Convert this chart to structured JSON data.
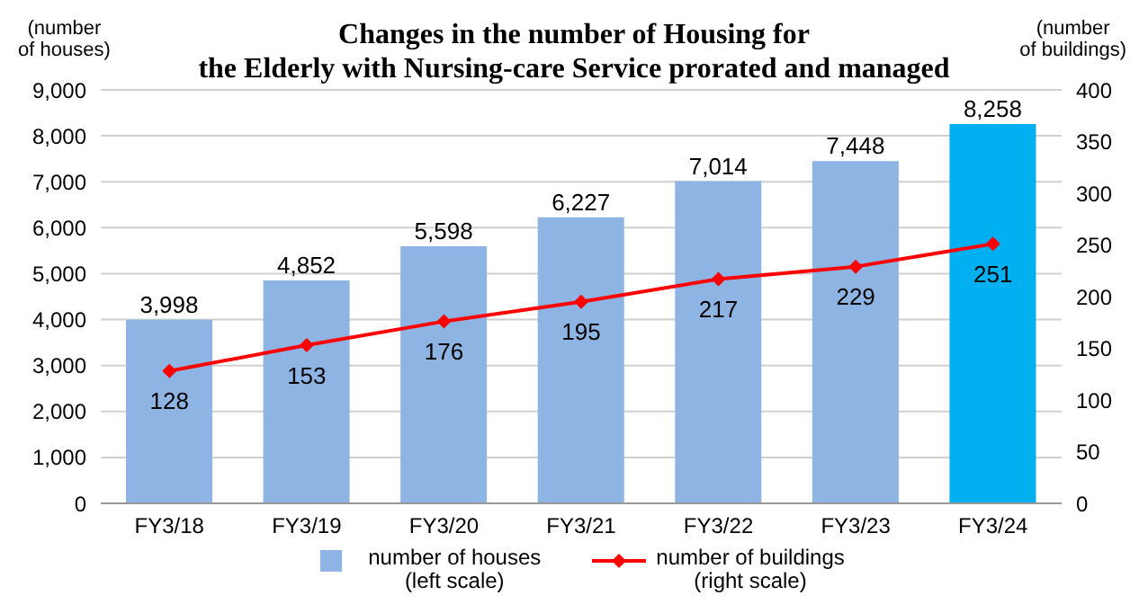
{
  "chart_data": {
    "type": "bar",
    "title": "Changes in the number of Housing for\nthe Elderly with Nursing-care Service prorated and managed",
    "ylabel": "(number\nof houses)",
    "y2label": "(number\nof buildings)",
    "categories": [
      "FY3/18",
      "FY3/19",
      "FY3/20",
      "FY3/21",
      "FY3/22",
      "FY3/23",
      "FY3/24"
    ],
    "series": [
      {
        "name": "number of houses\n(left scale)",
        "color": "#8db4e2",
        "value_labels": [
          "3,998",
          "4,852",
          "5,598",
          "6,227",
          "7,014",
          "7,448",
          "8,258"
        ],
        "colors": [
          "#8db4e2",
          "#8db4e2",
          "#8db4e2",
          "#8db4e2",
          "#8db4e2",
          "#8db4e2",
          "#00b0f0"
        ],
        "values": [
          3998,
          4852,
          5598,
          6227,
          7014,
          7448,
          8258
        ]
      },
      {
        "name": "number of buildings\n(right scale)",
        "type": "line",
        "axis": "y2",
        "color": "#ff0000",
        "marker": "diamond",
        "values": [
          128,
          153,
          176,
          195,
          217,
          229,
          251
        ]
      }
    ],
    "ylim": [
      0,
      9000
    ],
    "yticks": [
      0,
      {
        "value": 1000,
        "label": "1,000"
      },
      {
        "value": 2000,
        "label": "2,000"
      },
      {
        "value": 3000,
        "label": "3,000"
      },
      {
        "value": 4000,
        "label": "4,000"
      },
      {
        "value": 5000,
        "label": "5,000"
      },
      {
        "value": 6000,
        "label": "6,000"
      },
      {
        "value": 7000,
        "label": "7,000"
      },
      {
        "value": 8000,
        "label": "8,000"
      },
      {
        "value": 9000,
        "label": "9,000"
      }
    ],
    "y2lim": [
      0,
      400
    ],
    "y2ticks": [
      0,
      50,
      100,
      150,
      200,
      250,
      300,
      350,
      400
    ],
    "grid": "y",
    "legend": "bottom",
    "data_labels": true
  }
}
